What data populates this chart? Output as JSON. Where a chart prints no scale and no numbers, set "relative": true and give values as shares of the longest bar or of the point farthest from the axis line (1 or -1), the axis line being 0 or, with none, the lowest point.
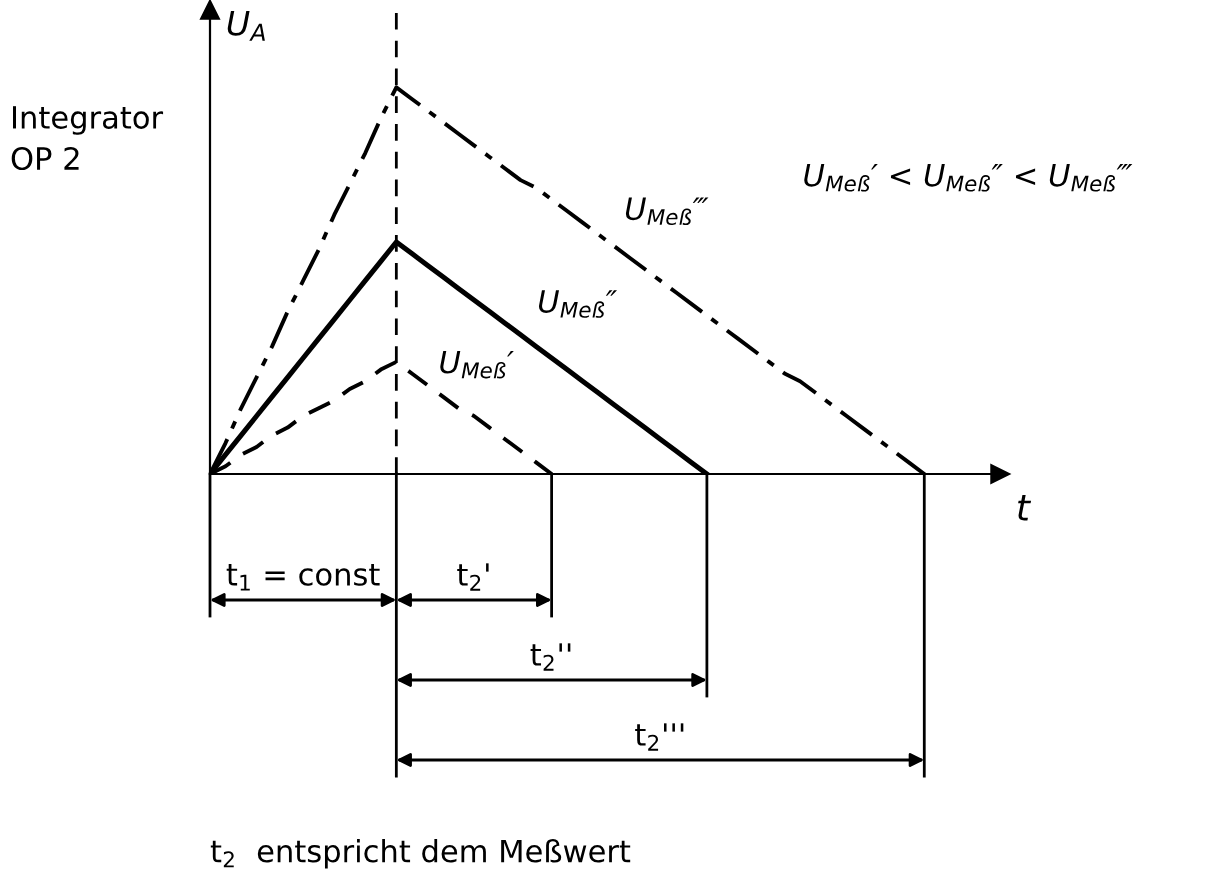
{
  "chart_data": {
    "type": "line",
    "relative": true,
    "xlabel": "t",
    "ylabel": "U$_{A}$",
    "tick_labels": false,
    "categories": [
      null,
      null,
      null,
      null,
      null,
      null,
      null,
      null,
      null,
      null,
      null,
      null,
      null,
      null,
      null,
      null,
      null,
      null,
      null,
      null,
      null,
      null,
      null,
      null,
      null,
      null,
      null,
      null,
      null,
      null,
      null,
      null,
      null,
      null,
      null,
      null,
      null,
      null,
      null,
      null,
      null,
      null,
      null,
      null,
      null,
      null,
      null
    ],
    "series": [
      {
        "name": "U$_{Meß}$′",
        "color": "#000000",
        "line_style": "dashed",
        "values": [
          0,
          0.02,
          0.05,
          0.07,
          0.1,
          0.12,
          0.15,
          0.17,
          0.19,
          0.22,
          0.24,
          0.27,
          0.29,
          0.26,
          0.23,
          0.2,
          0.17,
          0.15,
          0.12,
          0.09,
          0.06,
          0.03,
          0,
          null,
          null,
          null,
          null,
          null,
          null,
          null,
          null,
          null,
          null,
          null,
          null,
          null,
          null,
          null,
          null,
          null,
          null,
          null,
          null,
          null,
          null,
          null,
          null
        ]
      },
      {
        "name": "U$_{Meß}$″",
        "color": "#000000",
        "line_style": "solid",
        "values": [
          0,
          0.05,
          0.1,
          0.15,
          0.2,
          0.25,
          0.3,
          0.35,
          0.4,
          0.45,
          0.5,
          0.55,
          0.6,
          0.57,
          0.54,
          0.51,
          0.48,
          0.45,
          0.42,
          0.39,
          0.36,
          0.33,
          0.3,
          0.27,
          0.24,
          0.21,
          0.18,
          0.15,
          0.12,
          0.09,
          0.06,
          0.03,
          0,
          null,
          null,
          null,
          null,
          null,
          null,
          null,
          null,
          null,
          null,
          null,
          null,
          null,
          null
        ]
      },
      {
        "name": "U$_{Meß}$‴",
        "color": "#000000",
        "line_style": "dashdot",
        "values": [
          0,
          0.08,
          0.17,
          0.25,
          0.33,
          0.42,
          0.5,
          0.58,
          0.67,
          0.75,
          0.83,
          0.92,
          1,
          0.97,
          0.94,
          0.91,
          0.88,
          0.85,
          0.82,
          0.79,
          0.76,
          0.74,
          0.71,
          0.68,
          0.65,
          0.62,
          0.59,
          0.56,
          0.53,
          0.5,
          0.47,
          0.44,
          0.41,
          0.38,
          0.35,
          0.32,
          0.29,
          0.26,
          0.24,
          0.21,
          0.18,
          0.15,
          0.12,
          0.09,
          0.06,
          0.03,
          0
        ]
      }
    ],
    "annotations": [
      "Integrator\nOP 2",
      "U$_{Meß}$′ < U$_{Meß}$″ < U$_{Meß}$‴",
      "t$_{1}$ = const",
      "t$_{2}$'",
      "t$_{2}$''",
      "t$_{2}$'''",
      "t$_{2}$  entspricht dem Meßwert"
    ]
  }
}
